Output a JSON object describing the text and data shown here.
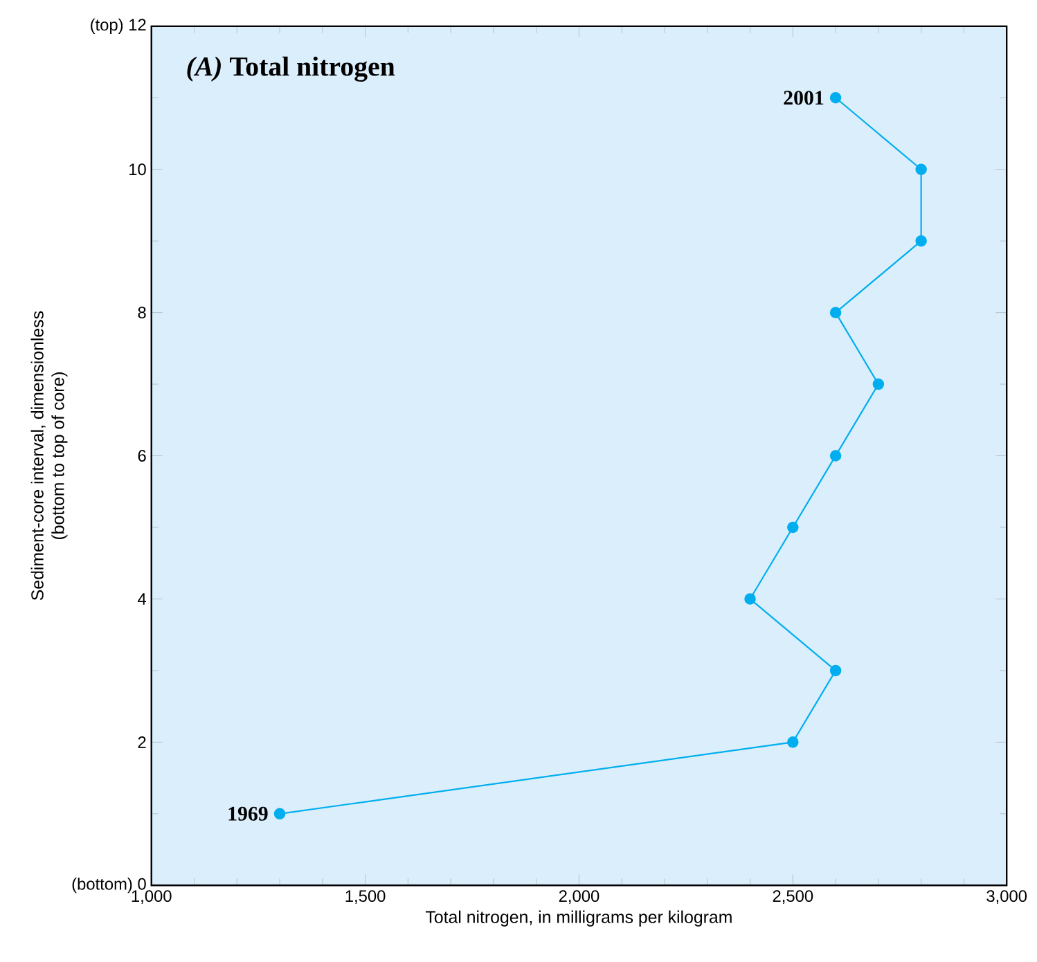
{
  "chart_data": {
    "type": "line",
    "title": "*(A)* Total nitrogen",
    "xlabel": "Total nitrogen, in milligrams per kilogram",
    "ylabel": "Sediment-core interval, dimensionless\n(bottom to top of core)",
    "series": [
      {
        "color": "#00aeef",
        "x": [
          1300,
          2500,
          2600,
          2400,
          2500,
          2600,
          2700,
          2600,
          2800,
          2800,
          2600
        ],
        "values": [
          1,
          2,
          3,
          4,
          5,
          6,
          7,
          8,
          9,
          10,
          11
        ]
      }
    ],
    "xlim": [
      1000,
      3000
    ],
    "ylim": [
      0,
      12
    ],
    "xticks": [
      {
        "value": 1000,
        "label": "1,000"
      },
      {
        "value": 1500,
        "label": "1,500"
      },
      {
        "value": 2000,
        "label": "2,000"
      },
      {
        "value": 2500,
        "label": "2,500"
      },
      {
        "value": 3000,
        "label": "3,000"
      }
    ],
    "yticks": [
      {
        "value": 0,
        "label": "(bottom) 0"
      },
      2,
      4,
      6,
      8,
      10,
      {
        "value": 12,
        "label": "(top) 12"
      }
    ],
    "annotations": [
      {
        "text": "2001",
        "x": 2600,
        "y": 11
      },
      {
        "text": "1969",
        "x": 1300,
        "y": 1
      }
    ],
    "marker": "circle"
  }
}
